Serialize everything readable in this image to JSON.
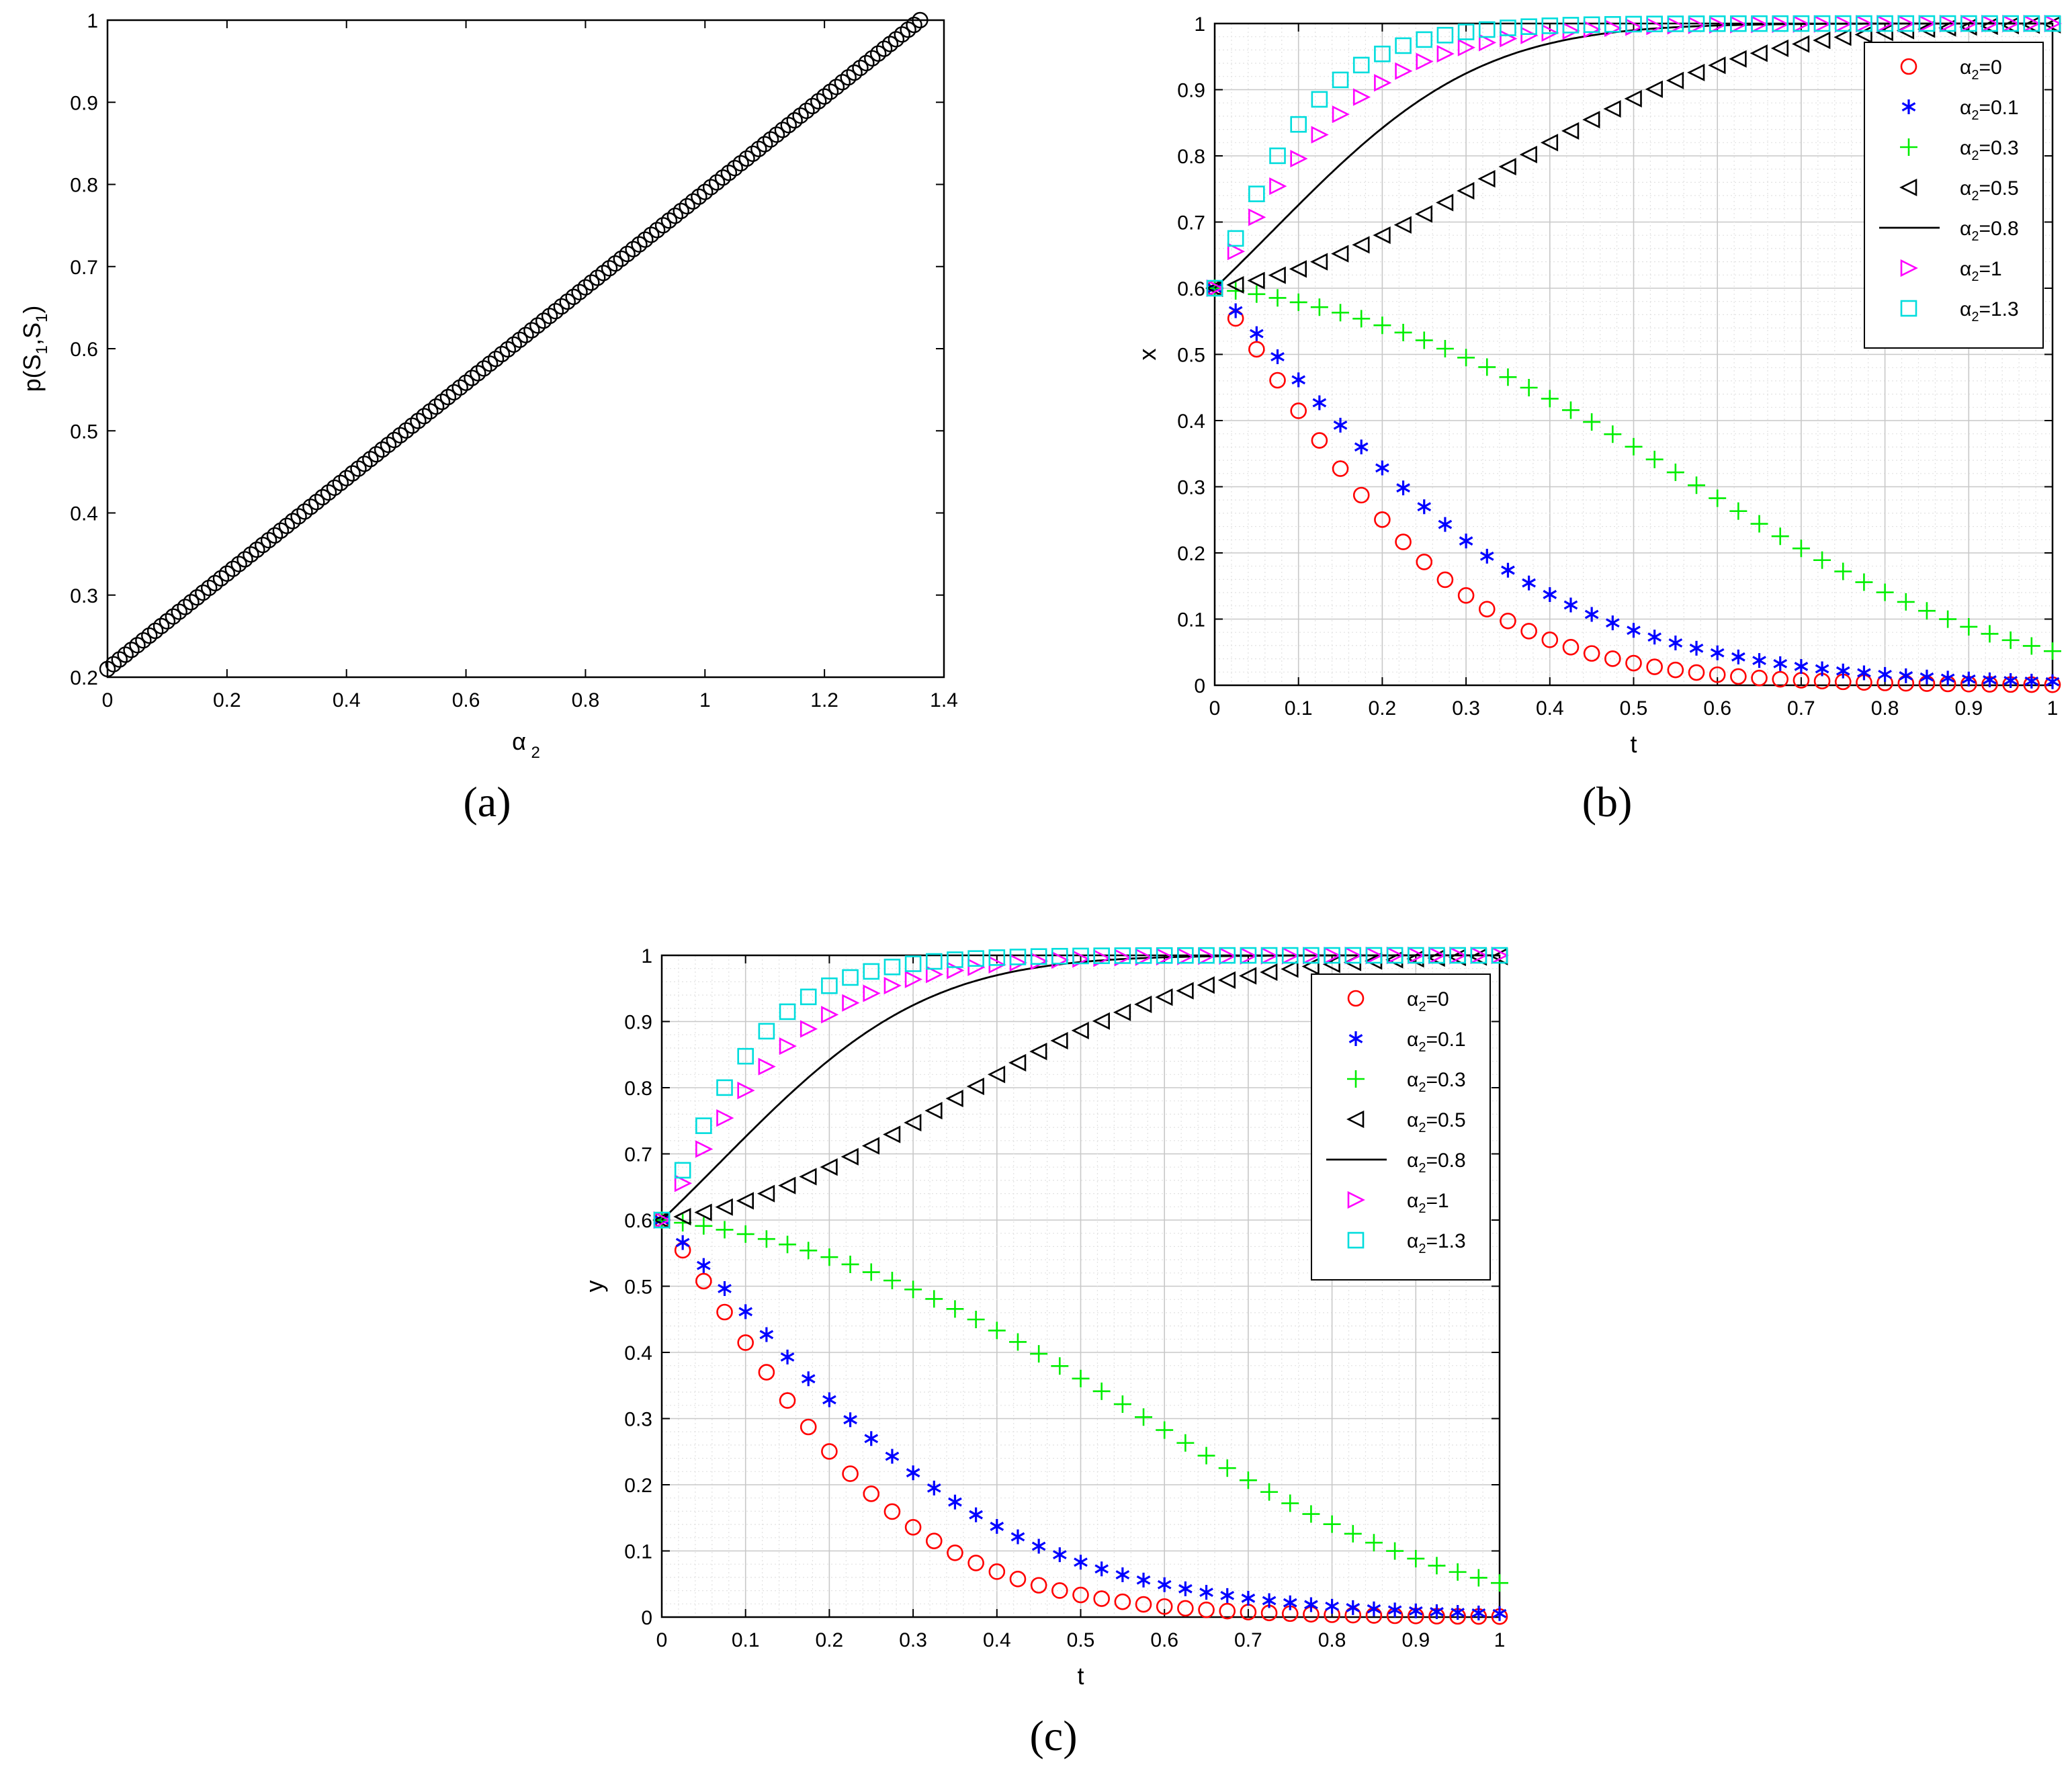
{
  "figure": {
    "panel_labels": [
      "(a)",
      "(b)",
      "(c)"
    ]
  },
  "chart_data": [
    {
      "id": "a",
      "type": "scatter",
      "title": "",
      "xlabel": "α",
      "xlabel_sub": "2",
      "ylabel_parts": [
        "p(S",
        "1",
        ",S",
        "1",
        ")"
      ],
      "xlim": [
        0,
        1.4
      ],
      "ylim": [
        0.2,
        1.0
      ],
      "xticks": [
        0,
        0.2,
        0.4,
        0.6,
        0.8,
        1,
        1.2,
        1.4
      ],
      "yticks": [
        0.2,
        0.3,
        0.4,
        0.5,
        0.6,
        0.7,
        0.8,
        0.9,
        1
      ],
      "grid": false,
      "series": [
        {
          "name": "p(S1,S1)",
          "marker": "circle",
          "color": "#000000",
          "x_start": 0,
          "x_end": 1.36,
          "y_start": 0.21,
          "y_end": 1.0,
          "n_points": 136
        }
      ]
    },
    {
      "id": "b",
      "type": "line",
      "xlabel": "t",
      "ylabel": "x",
      "xlim": [
        0,
        1
      ],
      "ylim": [
        0,
        1
      ],
      "xticks": [
        0,
        0.1,
        0.2,
        0.3,
        0.4,
        0.5,
        0.6,
        0.7,
        0.8,
        0.9,
        1
      ],
      "yticks": [
        0,
        0.1,
        0.2,
        0.3,
        0.4,
        0.5,
        0.6,
        0.7,
        0.8,
        0.9,
        1
      ],
      "grid": true,
      "legend_position": "top-right",
      "initial_value": 0.6,
      "t_step": 0.025,
      "series": [
        {
          "name": "α",
          "sub": "2",
          "value_label": "=0",
          "marker": "circle",
          "color": "#ff0000",
          "rate": -7.5
        },
        {
          "name": "α",
          "sub": "2",
          "value_label": "=0.1",
          "marker": "asterisk",
          "color": "#0000ff",
          "rate": -5.6
        },
        {
          "name": "α",
          "sub": "2",
          "value_label": "=0.3",
          "marker": "plus",
          "color": "#00ee00",
          "rate": -0.6,
          "rate_end": -6.0
        },
        {
          "name": "α",
          "sub": "2",
          "value_label": "=0.5",
          "marker": "triangle-left",
          "color": "#000000",
          "rate": 0.7,
          "rate_end": 11.0
        },
        {
          "name": "α",
          "sub": "2",
          "value_label": "=0.8",
          "marker": "line",
          "color": "#000000",
          "rate": 5.0,
          "rate_end": 18.0
        },
        {
          "name": "α",
          "sub": "2",
          "value_label": "=1",
          "marker": "triangle-right",
          "color": "#ff00ff",
          "rate": 9.5
        },
        {
          "name": "α",
          "sub": "2",
          "value_label": "=1.3",
          "marker": "square",
          "color": "#00dddd",
          "rate": 13.0
        }
      ]
    },
    {
      "id": "c",
      "type": "line",
      "xlabel": "t",
      "ylabel": "y",
      "xlim": [
        0,
        1
      ],
      "ylim": [
        0,
        1
      ],
      "xticks": [
        0,
        0.1,
        0.2,
        0.3,
        0.4,
        0.5,
        0.6,
        0.7,
        0.8,
        0.9,
        1
      ],
      "yticks": [
        0,
        0.1,
        0.2,
        0.3,
        0.4,
        0.5,
        0.6,
        0.7,
        0.8,
        0.9,
        1
      ],
      "grid": true,
      "legend_position": "top-right",
      "initial_value": 0.6,
      "t_step": 0.025,
      "series": [
        {
          "name": "α",
          "sub": "2",
          "value_label": "=0",
          "marker": "circle",
          "color": "#ff0000",
          "rate": -7.5
        },
        {
          "name": "α",
          "sub": "2",
          "value_label": "=0.1",
          "marker": "asterisk",
          "color": "#0000ff",
          "rate": -5.6
        },
        {
          "name": "α",
          "sub": "2",
          "value_label": "=0.3",
          "marker": "plus",
          "color": "#00ee00",
          "rate": -0.6,
          "rate_end": -6.0
        },
        {
          "name": "α",
          "sub": "2",
          "value_label": "=0.5",
          "marker": "triangle-left",
          "color": "#000000",
          "rate": 0.7,
          "rate_end": 11.0
        },
        {
          "name": "α",
          "sub": "2",
          "value_label": "=0.8",
          "marker": "line",
          "color": "#000000",
          "rate": 5.0,
          "rate_end": 18.0
        },
        {
          "name": "α",
          "sub": "2",
          "value_label": "=1",
          "marker": "triangle-right",
          "color": "#ff00ff",
          "rate": 9.5
        },
        {
          "name": "α",
          "sub": "2",
          "value_label": "=1.3",
          "marker": "square",
          "color": "#00dddd",
          "rate": 13.0
        }
      ]
    }
  ]
}
